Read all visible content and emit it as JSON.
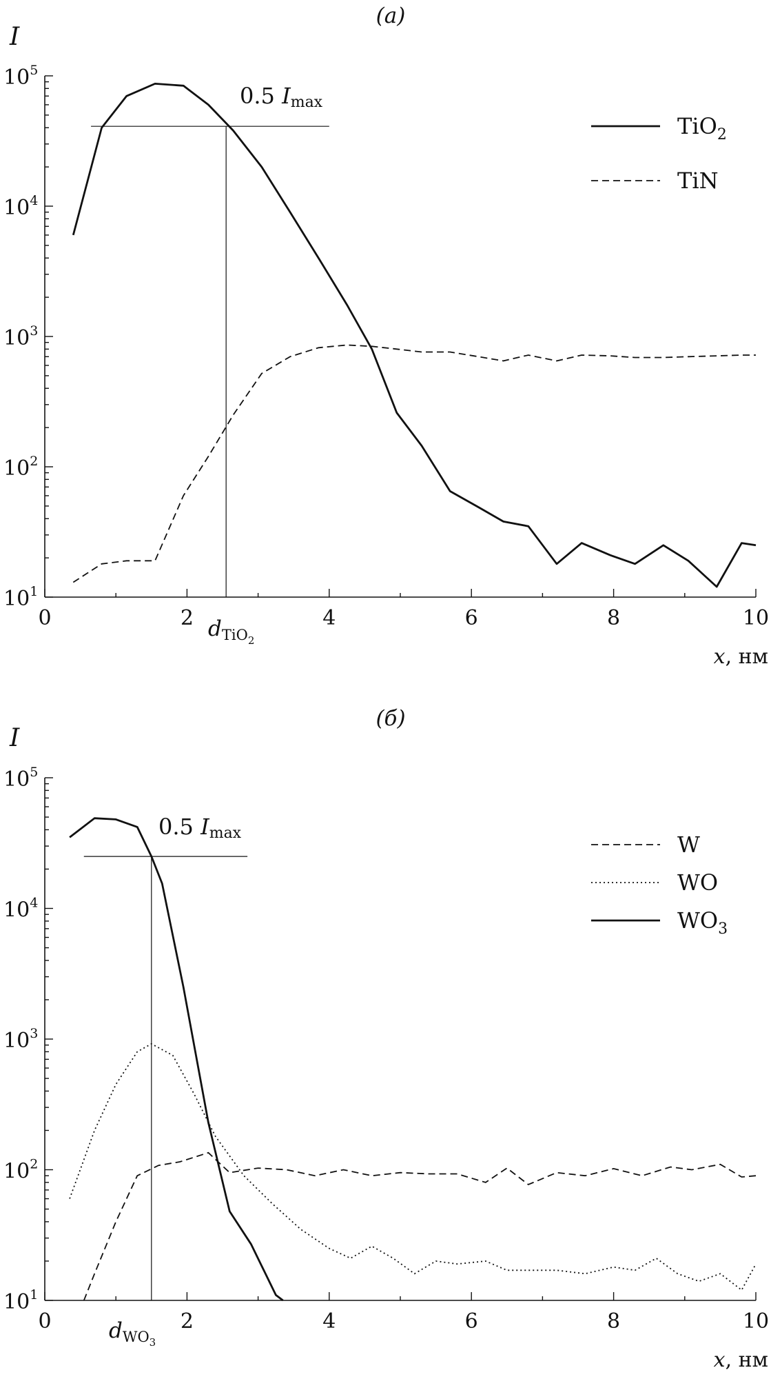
{
  "chart_data": [
    {
      "type": "line",
      "panel_label": "(а)",
      "ylabel": "I",
      "xlabel": "x",
      "xlabel_unit": ", нм",
      "y_scale": "log",
      "ylim": [
        10,
        100000
      ],
      "xlim": [
        0,
        10
      ],
      "x_ticks": [
        "0",
        "2",
        "4",
        "6",
        "8",
        "10"
      ],
      "y_ticks": [
        {
          "base": "10",
          "exp": "1",
          "value": 10
        },
        {
          "base": "10",
          "exp": "2",
          "value": 100
        },
        {
          "base": "10",
          "exp": "3",
          "value": 1000
        },
        {
          "base": "10",
          "exp": "4",
          "value": 10000
        },
        {
          "base": "10",
          "exp": "5",
          "value": 100000
        }
      ],
      "legend_position": "top-right",
      "annotation": {
        "prefix": "0.5 ",
        "symbol": "I",
        "sub": "max",
        "y": 41000,
        "x_from": 0.65,
        "x_to": 4.0
      },
      "marker": {
        "label": "d",
        "sub": "TiO",
        "subsub": "2",
        "x": 2.55
      },
      "series": [
        {
          "name": "TiO",
          "name_sub": "2",
          "style": "solid",
          "x": [
            0.4,
            0.8,
            1.15,
            1.55,
            1.95,
            2.3,
            2.65,
            3.05,
            3.45,
            3.85,
            4.25,
            4.6,
            4.95,
            5.3,
            5.7,
            6.1,
            6.45,
            6.8,
            7.2,
            7.55,
            7.95,
            8.3,
            8.7,
            9.05,
            9.45,
            9.8,
            10.0
          ],
          "y": [
            6000,
            40000,
            70000,
            87000,
            84000,
            60000,
            38000,
            20000,
            9000,
            4000,
            1750,
            800,
            260,
            145,
            65,
            49,
            38,
            35,
            18,
            26,
            21,
            18,
            25,
            19,
            12,
            26,
            25
          ]
        },
        {
          "name": "TiN",
          "name_sub": "",
          "style": "dashed",
          "x": [
            0.4,
            0.8,
            1.15,
            1.55,
            1.95,
            2.3,
            2.65,
            3.05,
            3.45,
            3.85,
            4.25,
            4.6,
            4.95,
            5.3,
            5.7,
            6.1,
            6.45,
            6.8,
            7.2,
            7.55,
            7.95,
            8.3,
            8.7,
            9.05,
            9.45,
            9.8,
            10.0
          ],
          "y": [
            13,
            18,
            19,
            19,
            60,
            120,
            250,
            520,
            700,
            820,
            860,
            840,
            800,
            760,
            760,
            700,
            650,
            720,
            650,
            720,
            710,
            690,
            690,
            700,
            710,
            720,
            720
          ]
        }
      ]
    },
    {
      "type": "line",
      "panel_label": "(б)",
      "ylabel": "I",
      "xlabel": "x",
      "xlabel_unit": ", нм",
      "y_scale": "log",
      "ylim": [
        10,
        100000
      ],
      "xlim": [
        0,
        10
      ],
      "x_ticks": [
        "0",
        "2",
        "4",
        "6",
        "8",
        "10"
      ],
      "y_ticks": [
        {
          "base": "10",
          "exp": "1",
          "value": 10
        },
        {
          "base": "10",
          "exp": "2",
          "value": 100
        },
        {
          "base": "10",
          "exp": "3",
          "value": 1000
        },
        {
          "base": "10",
          "exp": "4",
          "value": 10000
        },
        {
          "base": "10",
          "exp": "5",
          "value": 100000
        }
      ],
      "legend_position": "top-right",
      "annotation": {
        "prefix": "0.5 ",
        "symbol": "I",
        "sub": "max",
        "y": 25000,
        "x_from": 0.55,
        "x_to": 2.85
      },
      "marker": {
        "label": "d",
        "sub": "WO",
        "subsub": "3",
        "x": 1.5
      },
      "series": [
        {
          "name": "W",
          "name_sub": "",
          "style": "dashed",
          "x": [
            0.55,
            0.7,
            1.0,
            1.3,
            1.6,
            1.9,
            2.3,
            2.6,
            3.0,
            3.4,
            3.8,
            4.2,
            4.6,
            5.0,
            5.4,
            5.8,
            6.2,
            6.5,
            6.8,
            7.2,
            7.6,
            8.0,
            8.4,
            8.8,
            9.1,
            9.5,
            9.8,
            10.0
          ],
          "y": [
            10,
            16,
            40,
            90,
            108,
            115,
            135,
            95,
            103,
            100,
            90,
            100,
            90,
            95,
            93,
            93,
            80,
            103,
            77,
            95,
            90,
            102,
            90,
            105,
            100,
            110,
            88,
            90
          ]
        },
        {
          "name": "WO",
          "name_sub": "",
          "style": "dotted",
          "x": [
            0.35,
            0.7,
            1.0,
            1.3,
            1.5,
            1.8,
            2.1,
            2.4,
            2.8,
            3.2,
            3.6,
            4.0,
            4.3,
            4.6,
            4.9,
            5.2,
            5.5,
            5.8,
            6.2,
            6.5,
            6.8,
            7.2,
            7.6,
            8.0,
            8.3,
            8.6,
            8.9,
            9.2,
            9.5,
            9.8,
            10.0
          ],
          "y": [
            60,
            200,
            450,
            800,
            920,
            750,
            380,
            180,
            90,
            55,
            35,
            25,
            21,
            26,
            21,
            16,
            20,
            19,
            20,
            17,
            17,
            17,
            16,
            18,
            17,
            21,
            16,
            14,
            16,
            12,
            19
          ]
        },
        {
          "name": "WO",
          "name_sub": "3",
          "style": "solid",
          "x": [
            0.35,
            0.7,
            1.0,
            1.3,
            1.5,
            1.65,
            1.95,
            2.3,
            2.6,
            2.9,
            3.25,
            3.35
          ],
          "y": [
            35000,
            49000,
            48000,
            42000,
            25000,
            15500,
            2500,
            230,
            48,
            27,
            11,
            10
          ]
        }
      ]
    }
  ]
}
